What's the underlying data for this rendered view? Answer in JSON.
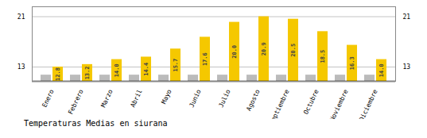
{
  "chart_data": {
    "type": "bar",
    "title": "Temperaturas Medias en siurana",
    "categories": [
      "Enero",
      "Febrero",
      "Marzo",
      "Abril",
      "Mayo",
      "Junio",
      "Julio",
      "Agosto",
      "Septiembre",
      "Octubre",
      "Noviembre",
      "Diciembre"
    ],
    "series": [
      {
        "color": "#BBBBBB",
        "values": [
          11.5,
          11.5,
          11.5,
          11.5,
          11.5,
          11.5,
          11.5,
          11.5,
          11.5,
          11.5,
          11.5,
          11.5
        ]
      },
      {
        "color": "#F5C800",
        "values": [
          12.8,
          13.2,
          14.0,
          14.4,
          15.7,
          17.6,
          20.0,
          20.9,
          20.5,
          18.5,
          16.3,
          14.0
        ],
        "data_labels": true,
        "value_labels": [
          "12.8",
          "13.2",
          "14.0",
          "14.4",
          "15.7",
          "17.6",
          "20.0",
          "20.9",
          "20.5",
          "18.5",
          "16.3",
          "14.0"
        ]
      }
    ],
    "ylim": [
      10.5,
      22.5
    ],
    "yticks": [
      12.8,
      20.9
    ],
    "y2lim": [
      10.5,
      22.5
    ],
    "y2ticks": [
      12.8,
      20.9
    ],
    "grid": true
  }
}
